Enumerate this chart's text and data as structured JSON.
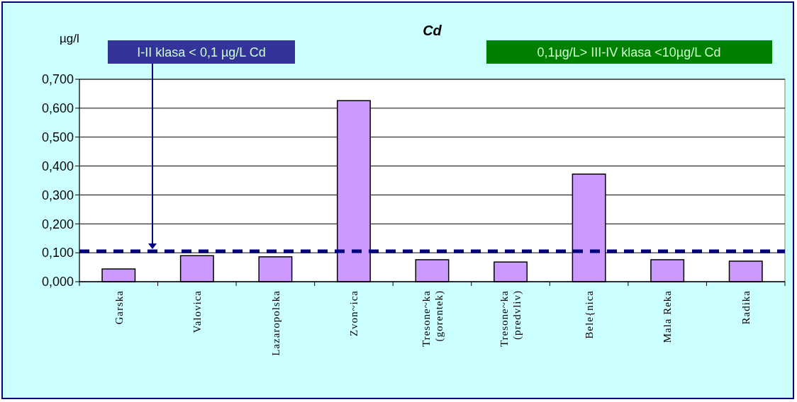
{
  "chart_data": {
    "type": "bar",
    "title": "Cd",
    "ylabel": "µg/l",
    "categories": [
      "Garska",
      "Valovica",
      "Lazaropolska",
      "Zvon~ica",
      "Tresone~ka (gorentek)",
      "Tresone~ka (predvliv)",
      "Bele{nica",
      "Mala Reka",
      "Radika"
    ],
    "values": [
      0.044,
      0.09,
      0.086,
      0.626,
      0.076,
      0.068,
      0.372,
      0.076,
      0.071
    ],
    "color": "#cc99ff",
    "ylim": [
      0,
      0.7
    ],
    "yticks": [
      {
        "value": 0,
        "label": "0,000"
      },
      {
        "value": 0.1,
        "label": "0,100"
      },
      {
        "value": 0.2,
        "label": "0,200"
      },
      {
        "value": 0.3,
        "label": "0,300"
      },
      {
        "value": 0.4,
        "label": "0,400"
      },
      {
        "value": 0.5,
        "label": "0,500"
      },
      {
        "value": 0.6,
        "label": "0,600"
      },
      {
        "value": 0.7,
        "label": "0,700"
      }
    ],
    "grid": "y",
    "ref_lines": [
      {
        "axis": "y",
        "value": 0.105,
        "label": "I-II klasa < 0,1 µg/L Cd",
        "color": "#000080",
        "line_style": "dashed"
      }
    ],
    "annotations": [
      "0,1µg/L> III-IV klasa <10µg/L Cd"
    ]
  }
}
